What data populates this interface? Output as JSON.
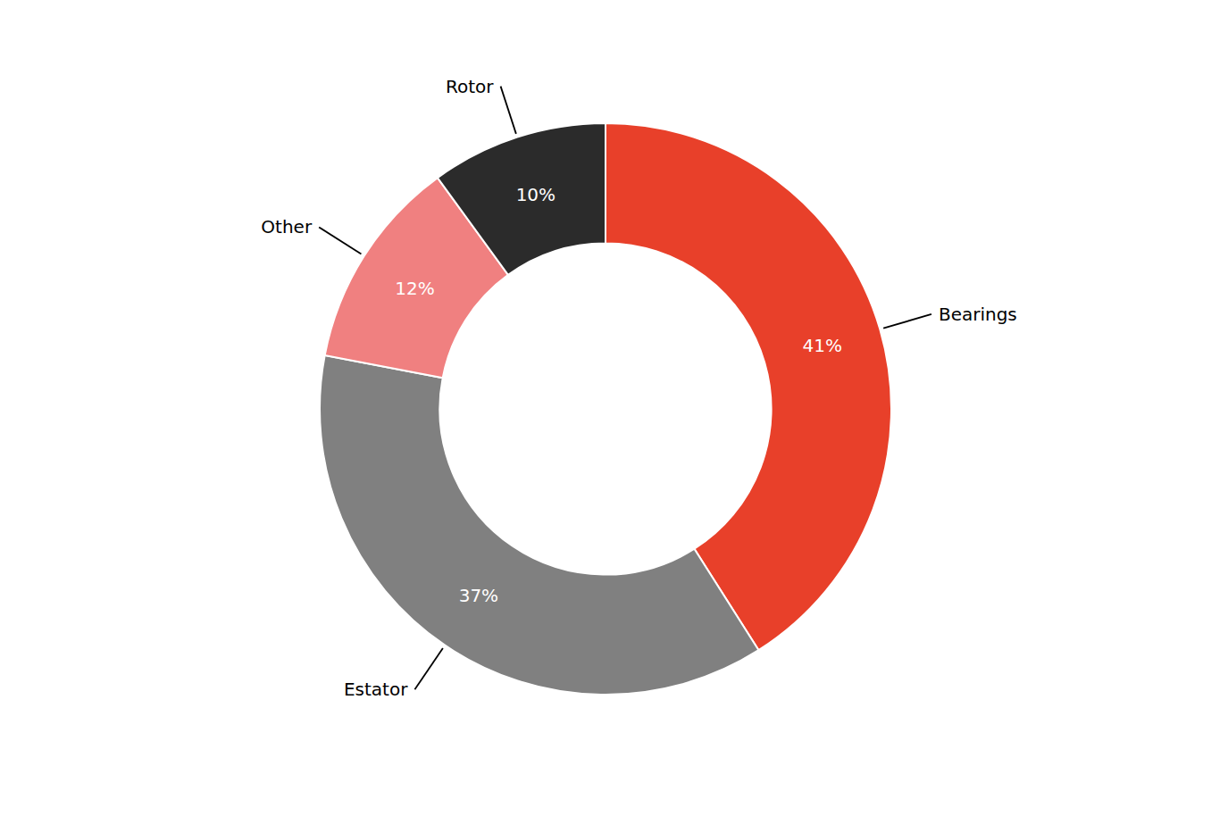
{
  "chart_data": {
    "type": "pie",
    "categories": [
      "Bearings",
      "Estator",
      "Other",
      "Rotor"
    ],
    "values": [
      41,
      37,
      12,
      10
    ],
    "value_labels": [
      "41%",
      "37%",
      "12%",
      "10%"
    ],
    "colors": [
      "#E8402A",
      "#808080",
      "#F08080",
      "#2B2B2B"
    ],
    "data_labels": true
  }
}
